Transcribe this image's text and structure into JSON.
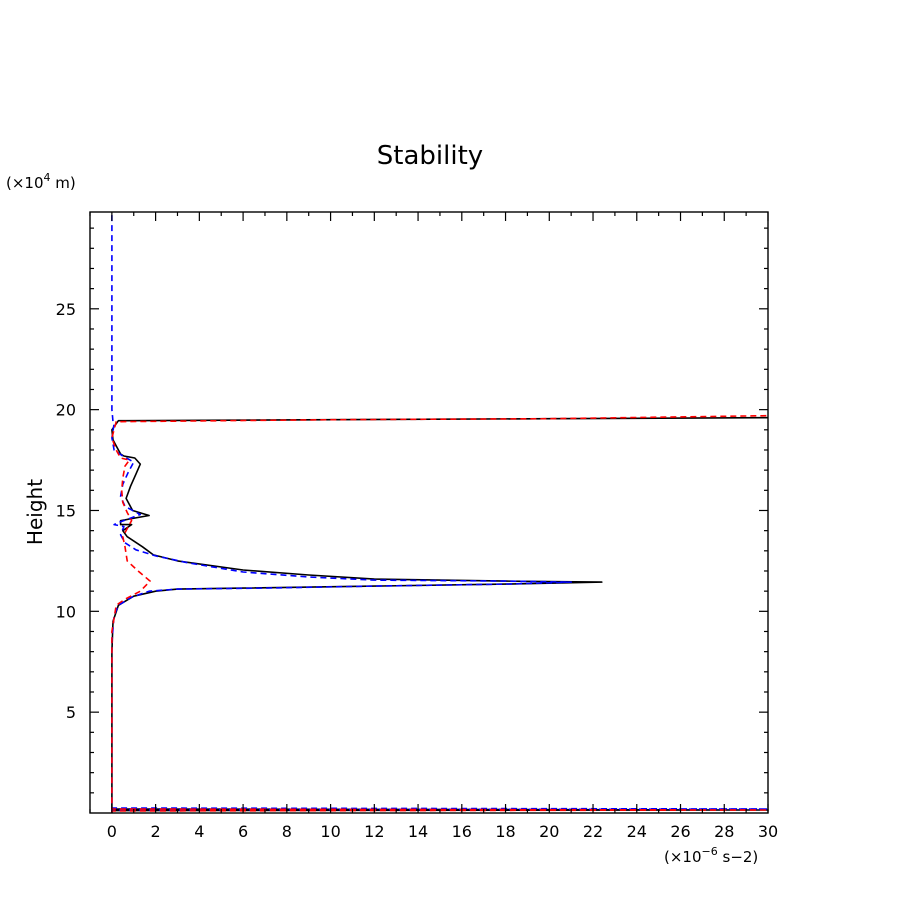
{
  "chart_data": {
    "type": "line",
    "title": "Stability",
    "xlabel": "",
    "xunit_prefix": "(×10",
    "xunit_exp": "−6",
    "xunit_suffix": " s−2)",
    "ylabel": "Height",
    "yunit_prefix": "(×10",
    "yunit_exp": "4",
    "yunit_suffix": " m)",
    "xlim": [
      -1,
      30
    ],
    "ylim": [
      0,
      29.8
    ],
    "xticks": [
      0,
      2,
      4,
      6,
      8,
      10,
      12,
      14,
      16,
      18,
      20,
      22,
      24,
      26,
      28,
      30
    ],
    "yticks": [
      5,
      10,
      15,
      20,
      25
    ],
    "grid": false,
    "series": [
      {
        "color": "#000000",
        "dash": "solid",
        "points": [
          [
            0,
            0
          ],
          [
            0,
            0.12
          ],
          [
            30,
            0.15
          ],
          [
            30,
            0.15
          ],
          [
            0,
            0.2
          ],
          [
            0,
            8
          ],
          [
            0.05,
            9.5
          ],
          [
            0.3,
            10.3
          ],
          [
            1,
            10.75
          ],
          [
            2,
            11.0
          ],
          [
            3,
            11.1
          ],
          [
            6,
            11.15
          ],
          [
            12,
            11.25
          ],
          [
            18,
            11.35
          ],
          [
            22.4,
            11.45
          ],
          [
            18,
            11.5
          ],
          [
            12,
            11.6
          ],
          [
            9,
            11.8
          ],
          [
            6,
            12.05
          ],
          [
            3,
            12.5
          ],
          [
            1.9,
            12.8
          ],
          [
            1.4,
            13.2
          ],
          [
            0.7,
            13.7
          ],
          [
            0.5,
            14.0
          ],
          [
            0.9,
            14.3
          ],
          [
            0.4,
            14.3
          ],
          [
            0.4,
            14.5
          ],
          [
            1.7,
            14.75
          ],
          [
            0.95,
            15.0
          ],
          [
            0.65,
            15.6
          ],
          [
            0.85,
            16.2
          ],
          [
            1.1,
            16.8
          ],
          [
            1.3,
            17.3
          ],
          [
            1.05,
            17.6
          ],
          [
            0.55,
            17.7
          ],
          [
            0.4,
            17.8
          ],
          [
            0.2,
            18.2
          ],
          [
            0.05,
            18.5
          ],
          [
            0,
            19.0
          ],
          [
            0.3,
            19.45
          ],
          [
            10,
            19.5
          ],
          [
            20,
            19.55
          ],
          [
            30,
            19.6
          ]
        ]
      },
      {
        "color": "#0000ff",
        "dash": "dashed",
        "points": [
          [
            0,
            0
          ],
          [
            0,
            0.15
          ],
          [
            30,
            0.2
          ],
          [
            30,
            0.2
          ],
          [
            0,
            0.25
          ],
          [
            0,
            8.5
          ],
          [
            0.1,
            9.8
          ],
          [
            0.3,
            10.3
          ],
          [
            0.9,
            10.7
          ],
          [
            1.7,
            11.0
          ],
          [
            3,
            11.1
          ],
          [
            7,
            11.15
          ],
          [
            12,
            11.25
          ],
          [
            18,
            11.35
          ],
          [
            21,
            11.45
          ],
          [
            18,
            11.5
          ],
          [
            12,
            11.55
          ],
          [
            9,
            11.7
          ],
          [
            6,
            11.95
          ],
          [
            3.5,
            12.4
          ],
          [
            2,
            12.75
          ],
          [
            1.1,
            13.05
          ],
          [
            0.6,
            13.4
          ],
          [
            0.4,
            13.8
          ],
          [
            0.55,
            14.2
          ],
          [
            0.1,
            14.3
          ],
          [
            0.3,
            14.4
          ],
          [
            1.3,
            14.8
          ],
          [
            0.6,
            15.2
          ],
          [
            0.4,
            15.7
          ],
          [
            0.5,
            16.3
          ],
          [
            0.75,
            16.9
          ],
          [
            1.0,
            17.4
          ],
          [
            0.5,
            17.7
          ],
          [
            0.1,
            18.0
          ],
          [
            0,
            18.6
          ],
          [
            0.1,
            19.3
          ],
          [
            0.05,
            19.4
          ],
          [
            0,
            20
          ],
          [
            0,
            29.8
          ]
        ]
      },
      {
        "color": "#ff0000",
        "dash": "dashed",
        "points": [
          [
            0,
            0
          ],
          [
            0,
            0.1
          ],
          [
            30,
            0.15
          ],
          [
            30,
            0.15
          ],
          [
            0,
            0.2
          ],
          [
            0,
            9
          ],
          [
            0.2,
            10.3
          ],
          [
            0.6,
            10.6
          ],
          [
            1.3,
            11.0
          ],
          [
            1.75,
            11.5
          ],
          [
            1.2,
            12.0
          ],
          [
            0.7,
            12.5
          ],
          [
            0.6,
            13.2
          ],
          [
            0.5,
            13.7
          ],
          [
            0.7,
            14.1
          ],
          [
            0.9,
            14.5
          ],
          [
            0.7,
            14.9
          ],
          [
            0.5,
            15.4
          ],
          [
            0.45,
            16.0
          ],
          [
            0.5,
            16.6
          ],
          [
            0.6,
            17.2
          ],
          [
            0.8,
            17.5
          ],
          [
            0.4,
            17.6
          ],
          [
            0.2,
            18.0
          ],
          [
            0,
            18.6
          ],
          [
            0.2,
            19.4
          ],
          [
            10,
            19.5
          ],
          [
            20,
            19.55
          ],
          [
            30,
            19.7
          ]
        ]
      }
    ]
  }
}
